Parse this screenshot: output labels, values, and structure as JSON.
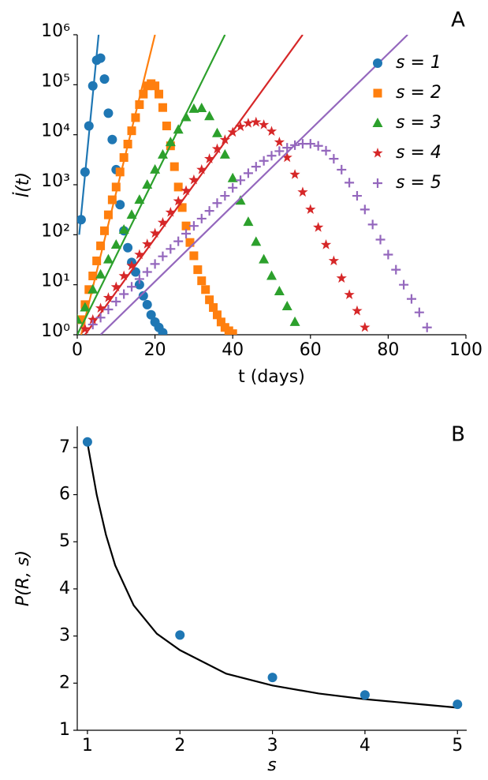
{
  "chart_data": [
    {
      "type": "line",
      "panel": "A",
      "log_y": true,
      "xlabel": "t (days)",
      "ylabel": "İ(t)",
      "xlim": [
        0,
        100
      ],
      "xticks": [
        0,
        20,
        40,
        60,
        80,
        100
      ],
      "ylim": [
        1,
        1000000
      ],
      "yticks": [
        {
          "value": 1,
          "label": "10⁰"
        },
        {
          "value": 10,
          "label": "10¹"
        },
        {
          "value": 100,
          "label": "10²"
        },
        {
          "value": 1000,
          "label": "10³"
        },
        {
          "value": 10000,
          "label": "10⁴"
        },
        {
          "value": 100000,
          "label": "10⁵"
        },
        {
          "value": 1000000,
          "label": "10⁶"
        }
      ],
      "legend": "upper right",
      "series": [
        {
          "name": "s = 1",
          "color": "#1f77b4",
          "marker": "circle",
          "x": [
            1,
            2,
            3,
            4,
            5,
            6,
            7,
            8,
            9,
            10,
            11,
            12,
            13,
            14,
            15,
            16,
            17,
            18,
            19,
            20,
            21,
            22
          ],
          "values": [
            200,
            1800,
            15000,
            95000,
            310000,
            340000,
            130000,
            27000,
            8000,
            2000,
            400,
            120,
            55,
            28,
            18,
            10,
            6,
            4,
            2.5,
            1.8,
            1.4,
            1.1
          ],
          "fit": {
            "x": [
              0.5,
              5.5
            ],
            "values": [
              100,
              1000000
            ]
          }
        },
        {
          "name": "s = 2",
          "color": "#ff7f0e",
          "marker": "square",
          "x": [
            1,
            2,
            3,
            4,
            5,
            6,
            7,
            8,
            9,
            10,
            11,
            12,
            13,
            14,
            15,
            16,
            17,
            18,
            19,
            20,
            21,
            22,
            23,
            24,
            25,
            26,
            27,
            28,
            29,
            30,
            31,
            32,
            33,
            34,
            35,
            36,
            37,
            38,
            39,
            40
          ],
          "values": [
            2,
            4,
            8,
            15,
            30,
            60,
            120,
            250,
            500,
            900,
            1800,
            3500,
            6500,
            12000,
            22000,
            40000,
            65000,
            95000,
            105000,
            95000,
            65000,
            35000,
            15000,
            6000,
            2300,
            900,
            350,
            150,
            70,
            38,
            20,
            12,
            8,
            5,
            3.5,
            2.5,
            1.8,
            1.4,
            1.2,
            1.05
          ],
          "fit": {
            "x": [
              1,
              20
            ],
            "values": [
              1,
              1000000
            ]
          }
        },
        {
          "name": "s = 3",
          "color": "#2ca02c",
          "marker": "triangle",
          "x": [
            0,
            2,
            4,
            6,
            8,
            10,
            12,
            14,
            16,
            18,
            20,
            22,
            24,
            26,
            28,
            30,
            32,
            34,
            36,
            38,
            40,
            42,
            44,
            46,
            48,
            50,
            52,
            54,
            56
          ],
          "values": [
            2,
            3.5,
            8,
            16,
            32,
            63,
            126,
            250,
            500,
            1000,
            2000,
            4000,
            7100,
            12600,
            22400,
            33000,
            34000,
            23400,
            10700,
            4000,
            1350,
            480,
            180,
            72,
            32,
            15,
            7.4,
            3.7,
            1.8
          ],
          "fit": {
            "x": [
              0,
              38
            ],
            "values": [
              1,
              1000000
            ]
          }
        },
        {
          "name": "s = 4",
          "color": "#d62728",
          "marker": "star",
          "x": [
            2,
            4,
            6,
            8,
            10,
            12,
            14,
            16,
            18,
            20,
            22,
            24,
            26,
            28,
            30,
            32,
            34,
            36,
            38,
            40,
            42,
            44,
            46,
            48,
            50,
            52,
            54,
            56,
            58,
            60,
            62,
            64,
            66,
            68,
            70,
            72,
            74
          ],
          "values": [
            1.3,
            2,
            3.4,
            5.5,
            9,
            15,
            24,
            40,
            65,
            107,
            175,
            280,
            470,
            760,
            1250,
            2000,
            3300,
            5200,
            7900,
            11200,
            14500,
            17000,
            17800,
            15800,
            11700,
            7100,
            3500,
            1600,
            710,
            320,
            140,
            63,
            30,
            13.5,
            6.3,
            3,
            1.4
          ],
          "fit": {
            "x": [
              2,
              58
            ],
            "values": [
              1,
              1000000
            ]
          }
        },
        {
          "name": "s = 5",
          "color": "#9467bd",
          "marker": "plus",
          "x": [
            4,
            6,
            8,
            10,
            12,
            14,
            16,
            18,
            20,
            22,
            24,
            26,
            28,
            30,
            32,
            34,
            36,
            38,
            40,
            42,
            44,
            46,
            48,
            50,
            52,
            54,
            56,
            58,
            60,
            62,
            64,
            66,
            68,
            70,
            72,
            74,
            76,
            78,
            80,
            82,
            84,
            86,
            88,
            90
          ],
          "values": [
            1.6,
            2.2,
            3.2,
            4.6,
            6.5,
            9.1,
            13,
            18,
            26,
            37,
            52,
            74,
            105,
            150,
            210,
            300,
            430,
            600,
            870,
            1230,
            1700,
            2300,
            3000,
            3800,
            4700,
            5500,
            6200,
            6600,
            6600,
            6000,
            4800,
            3300,
            2000,
            1100,
            600,
            320,
            160,
            80,
            40,
            20,
            10,
            5.2,
            2.8,
            1.4
          ],
          "fit": {
            "x": [
              6,
              85
            ],
            "values": [
              1,
              1000000
            ]
          }
        }
      ]
    },
    {
      "type": "scatter",
      "panel": "B",
      "xlabel": "s",
      "ylabel": "P(R, s)",
      "xlim": [
        0.89,
        5.1
      ],
      "xticks": [
        1,
        2,
        3,
        4,
        5
      ],
      "ylim": [
        1,
        7.45
      ],
      "yticks": [
        1,
        2,
        3,
        4,
        5,
        6,
        7
      ],
      "series": [
        {
          "color": "#1f77b4",
          "marker": "circle",
          "x": [
            1,
            2,
            3,
            4,
            5
          ],
          "values": [
            7.12,
            3.02,
            2.12,
            1.75,
            1.55
          ],
          "fit": {
            "color": "#000000",
            "x": [
              1,
              1.1,
              1.2,
              1.3,
              1.5,
              1.75,
              2,
              2.5,
              3,
              3.5,
              4,
              4.5,
              5
            ],
            "values": [
              7.1,
              6.0,
              5.15,
              4.5,
              3.65,
              3.05,
              2.7,
              2.2,
              1.95,
              1.78,
              1.66,
              1.57,
              1.48
            ]
          }
        }
      ]
    }
  ]
}
